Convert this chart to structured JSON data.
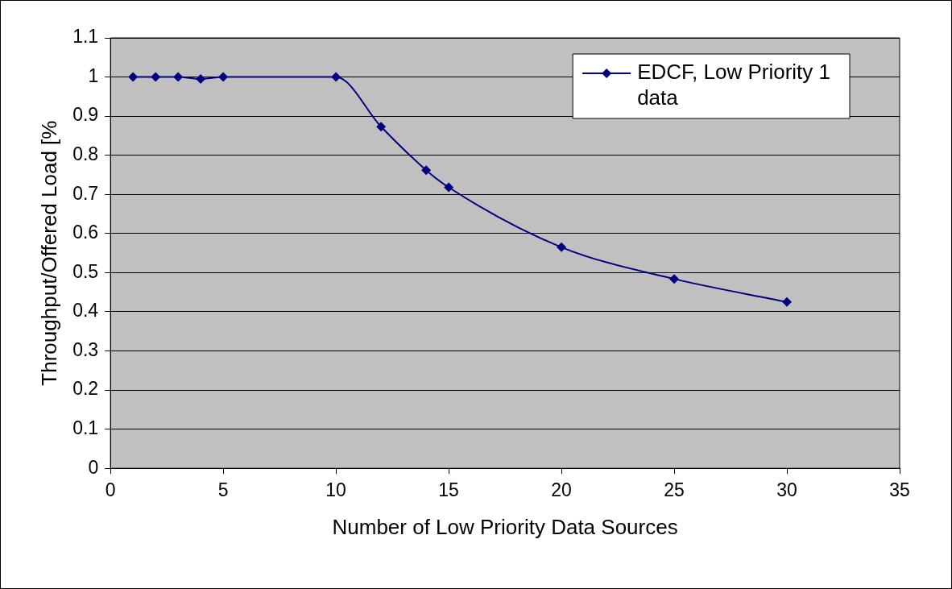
{
  "chart_data": {
    "type": "line",
    "xlabel": "Number of Low Priority Data Sources",
    "ylabel": "Throughput/Offered Load [%",
    "x": [
      1,
      2,
      3,
      4,
      5,
      10,
      12,
      14,
      15,
      20,
      25,
      30
    ],
    "series": [
      {
        "name": "EDCF, Low Priority 1 data",
        "color": "#000080",
        "values": [
          1,
          1,
          1,
          0.995,
          1,
          1,
          0.873,
          0.762,
          0.718,
          0.565,
          0.484,
          0.425
        ]
      }
    ],
    "xlim": [
      0,
      35
    ],
    "xticks": [
      0,
      5,
      10,
      15,
      20,
      25,
      30,
      35
    ],
    "ylim": [
      0,
      1.1
    ],
    "yticks": [
      0,
      0.1,
      0.2,
      0.3,
      0.4,
      0.5,
      0.6,
      0.7,
      0.8,
      0.9,
      1,
      1.1
    ],
    "grid": "y",
    "legend": "top right",
    "marker": "diamond",
    "line_style": "solid"
  }
}
